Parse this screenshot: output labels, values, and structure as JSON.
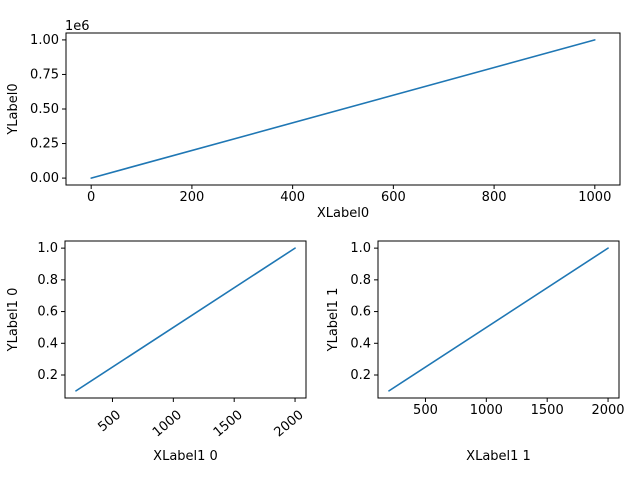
{
  "figure": {
    "background": "#ffffff",
    "spine_color": "#000000",
    "text_color": "#000000",
    "line_color": "#1f77b4"
  },
  "chart_data": [
    {
      "type": "line",
      "title": "",
      "xlabel": "XLabel0",
      "ylabel": "YLabel0",
      "offset_text": "1e6",
      "x": [
        0,
        1000
      ],
      "y": [
        0,
        1000000
      ],
      "xlim": [
        -50,
        1050
      ],
      "ylim": [
        -50000,
        1050000
      ],
      "xticks": [
        0,
        200,
        400,
        600,
        800,
        1000
      ],
      "xticklabels": [
        "0",
        "200",
        "400",
        "600",
        "800",
        "1000"
      ],
      "yticks": [
        0,
        250000,
        500000,
        750000,
        1000000
      ],
      "yticklabels": [
        "0.00",
        "0.25",
        "0.50",
        "0.75",
        "1.00"
      ],
      "xtick_rotation": 0,
      "grid": false,
      "legend": null,
      "line_color": "#1f77b4"
    },
    {
      "type": "line",
      "title": "",
      "xlabel": "XLabel1 0",
      "ylabel": "YLabel1 0",
      "offset_text": "",
      "x": [
        200,
        2000
      ],
      "y": [
        0.1,
        1.0
      ],
      "xlim": [
        110,
        2090
      ],
      "ylim": [
        0.055,
        1.045
      ],
      "xticks": [
        500,
        1000,
        1500,
        2000
      ],
      "xticklabels": [
        "500",
        "1000",
        "1500",
        "2000"
      ],
      "yticks": [
        0.2,
        0.4,
        0.6,
        0.8,
        1.0
      ],
      "yticklabels": [
        "0.2",
        "0.4",
        "0.6",
        "0.8",
        "1.0"
      ],
      "xtick_rotation": 40,
      "grid": false,
      "legend": null,
      "line_color": "#1f77b4"
    },
    {
      "type": "line",
      "title": "",
      "xlabel": "XLabel1 1",
      "ylabel": "YLabel1 1",
      "offset_text": "",
      "x": [
        200,
        2000
      ],
      "y": [
        0.1,
        1.0
      ],
      "xlim": [
        110,
        2090
      ],
      "ylim": [
        0.055,
        1.045
      ],
      "xticks": [
        500,
        1000,
        1500,
        2000
      ],
      "xticklabels": [
        "500",
        "1000",
        "1500",
        "2000"
      ],
      "yticks": [
        0.2,
        0.4,
        0.6,
        0.8,
        1.0
      ],
      "yticklabels": [
        "0.2",
        "0.4",
        "0.6",
        "0.8",
        "1.0"
      ],
      "xtick_rotation": 0,
      "grid": false,
      "legend": null,
      "line_color": "#1f77b4"
    }
  ]
}
